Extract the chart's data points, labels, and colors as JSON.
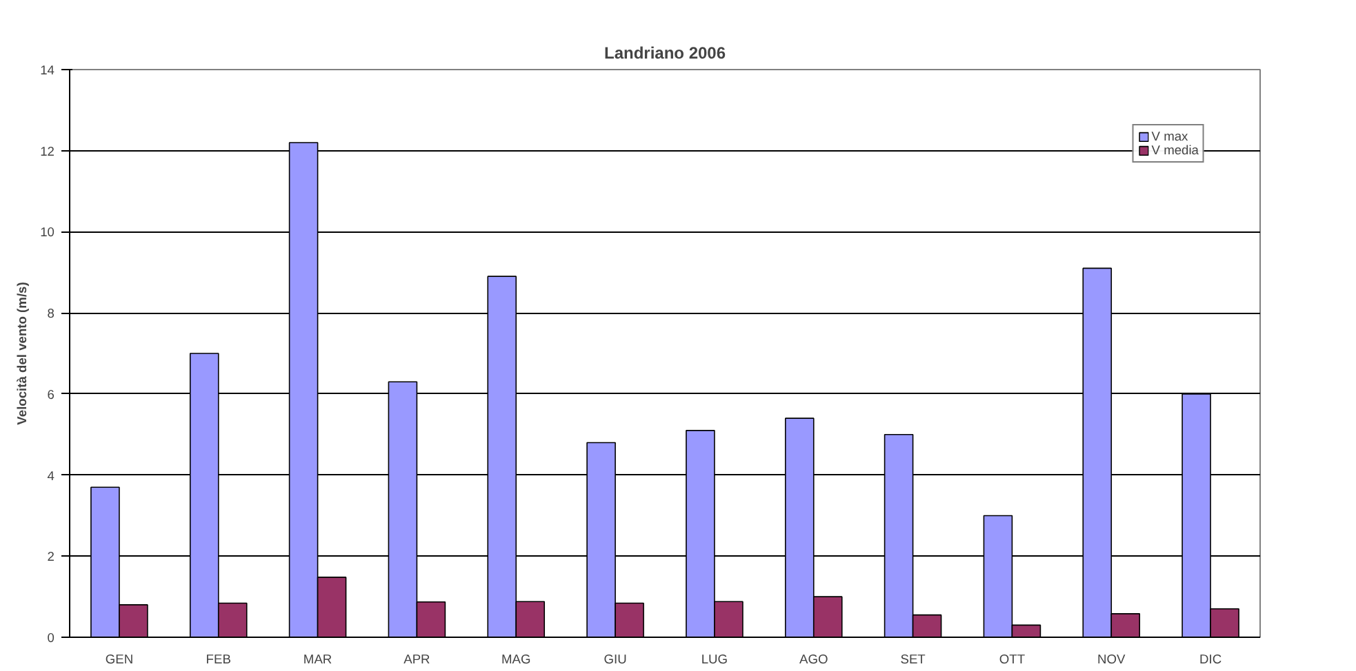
{
  "chart_data": {
    "type": "bar",
    "title": "Landriano 2006",
    "ylabel": "Velocità del vento (m/s)",
    "categories": [
      "GEN",
      "FEB",
      "MAR",
      "APR",
      "MAG",
      "GIU",
      "LUG",
      "AGO",
      "SET",
      "OTT",
      "NOV",
      "DIC"
    ],
    "series": [
      {
        "name": "V max",
        "color": "#9999ff",
        "values": [
          3.7,
          7.0,
          12.2,
          6.3,
          8.9,
          4.8,
          5.1,
          5.4,
          5.0,
          3.0,
          9.1,
          6.0
        ]
      },
      {
        "name": "V media",
        "color": "#993366",
        "values": [
          0.8,
          0.84,
          1.48,
          0.87,
          0.88,
          0.84,
          0.88,
          1.0,
          0.55,
          0.3,
          0.58,
          0.7
        ]
      }
    ],
    "ylim": [
      0,
      14
    ],
    "yticks": [
      0,
      2,
      4,
      6,
      8,
      10,
      12,
      14
    ],
    "grid": "y",
    "legend": "top right"
  }
}
